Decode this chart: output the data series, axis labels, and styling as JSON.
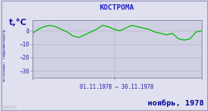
{
  "title": "КОСТРОМА",
  "ylabel": "t,°C",
  "date_label": "01.11.1978 – 30.11.1978",
  "bottom_label": "ноябрь, 1978",
  "source_label": "источник: гидрометцентр",
  "watermark": "lab127",
  "ylim": [
    -35,
    8
  ],
  "yticks": [
    0,
    -10,
    -20,
    -30
  ],
  "line_color": "#00bb00",
  "bg_color": "#e0e0ee",
  "plot_bg_color": "#d0d0e4",
  "grid_color": "#b8b8cc",
  "text_color": "#1a1aaa",
  "title_color": "#2222cc",
  "bottom_color": "#000099",
  "days": [
    1,
    2,
    3,
    4,
    5,
    6,
    7,
    8,
    9,
    10,
    11,
    12,
    13,
    14,
    15,
    16,
    17,
    18,
    19,
    20,
    21,
    22,
    23,
    24,
    25,
    26,
    27,
    28,
    29,
    30
  ],
  "temps": [
    -2,
    1,
    3,
    4,
    3,
    1,
    -1,
    -4,
    -5,
    -3,
    -1,
    1,
    4,
    3,
    1,
    0,
    2,
    4,
    3,
    2,
    1,
    -1,
    -2,
    -3,
    -2,
    -6,
    -7,
    -6,
    -1,
    0
  ]
}
